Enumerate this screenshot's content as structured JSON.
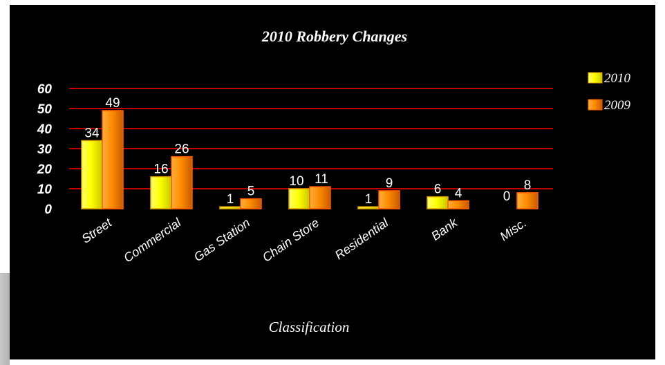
{
  "chart_data": {
    "type": "bar",
    "title": "2010 Robbery Changes",
    "xlabel": "Classification",
    "ylabel": "",
    "ylim": [
      0,
      60
    ],
    "yticks": [
      0,
      10,
      20,
      30,
      40,
      50,
      60
    ],
    "categories": [
      "Street",
      "Commercial",
      "Gas Station",
      "Chain Store",
      "Residential",
      "Bank",
      "Misc."
    ],
    "series": [
      {
        "name": "2010",
        "values": [
          34,
          16,
          1,
          10,
          1,
          6,
          0
        ],
        "color": "#ffff00"
      },
      {
        "name": "2009",
        "values": [
          49,
          26,
          5,
          11,
          9,
          4,
          8
        ],
        "color": "#ff8c00"
      }
    ],
    "grid": true,
    "grid_color": "#ff0000",
    "legend_position": "top-right",
    "data_labels": true
  }
}
